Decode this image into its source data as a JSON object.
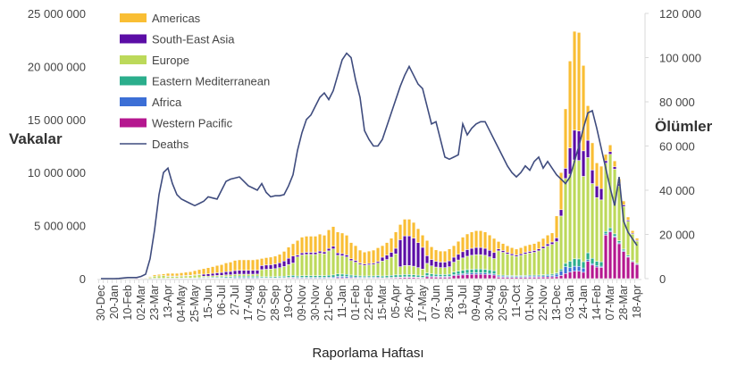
{
  "chart_data": {
    "type": "bar",
    "subtype": "stacked-bar-with-line",
    "xlabel": "Raporlama Haftası",
    "ylabel": "Vakalar",
    "y2label": "Ölümler",
    "ylim": [
      0,
      25000000
    ],
    "y2lim": [
      0,
      120000
    ],
    "cases_unit_multiplier": 1000000,
    "deaths_unit_multiplier": 1000,
    "yticks": [
      "0",
      "5 000 000",
      "10 000 000",
      "15 000 000",
      "20 000 000",
      "25 000 000"
    ],
    "y2ticks": [
      "0",
      "20 000",
      "40 000",
      "60 000",
      "80 000",
      "100 000",
      "120 000"
    ],
    "x_tick_every_weeks": 3,
    "x_tick_labels": [
      "30-Dec",
      "20-Jan",
      "10-Feb",
      "02-Mar",
      "23-Mar",
      "13-Apr",
      "04-May",
      "25-May",
      "15-Jun",
      "06-Jul",
      "27-Jul",
      "17-Aug",
      "07-Sep",
      "28-Sep",
      "19-Oct",
      "09-Nov",
      "30-Nov",
      "21-Dec",
      "11-Jan",
      "01-Feb",
      "22-Feb",
      "15-Mar",
      "05-Apr",
      "26-Apr",
      "17-May",
      "07-Jun",
      "28-Jun",
      "19-Jul",
      "09-Aug",
      "30-Aug",
      "20-Sep",
      "11-Oct",
      "01-Nov",
      "22-Nov",
      "13-Dec",
      "03-Jan",
      "24-Jan",
      "14-Feb",
      "07-Mar",
      "28-Mar",
      "18-Apr"
    ],
    "legend_position": "top-left",
    "legend": [
      "Americas",
      "South-East Asia",
      "Europe",
      "Eastern Mediterranean",
      "Africa",
      "Western Pacific",
      "Deaths"
    ],
    "stack_order": [
      "Western Pacific",
      "Africa",
      "Eastern Mediterranean",
      "Europe",
      "South-East Asia",
      "Americas"
    ],
    "series": [
      {
        "name": "Americas",
        "color": "#F9BE34",
        "values": [
          0,
          0,
          0,
          0,
          0,
          0,
          0,
          0,
          0,
          0,
          0.03,
          0.07,
          0.12,
          0.14,
          0.16,
          0.25,
          0.25,
          0.25,
          0.28,
          0.3,
          0.33,
          0.38,
          0.43,
          0.52,
          0.58,
          0.63,
          0.69,
          0.74,
          0.83,
          0.88,
          0.96,
          0.99,
          0.99,
          0.99,
          0.99,
          1.02,
          0.67,
          0.7,
          0.72,
          0.75,
          0.8,
          0.91,
          1.05,
          1.16,
          1.37,
          1.48,
          1.52,
          1.52,
          1.52,
          1.6,
          1.56,
          1.75,
          1.86,
          1.98,
          1.94,
          1.85,
          1.53,
          1.4,
          1.22,
          1.12,
          1.17,
          1.22,
          1.3,
          1.09,
          1.19,
          1.33,
          1.54,
          1.43,
          1.57,
          1.57,
          1.48,
          1.32,
          1.15,
          1.44,
          1.2,
          1.08,
          1.04,
          1.04,
          1.12,
          1.09,
          1.23,
          1.37,
          1.47,
          1.54,
          1.58,
          1.58,
          1.54,
          1.44,
          1.33,
          0.7,
          0.66,
          0.62,
          0.58,
          0.56,
          0.58,
          0.62,
          0.64,
          0.66,
          0.7,
          0.76,
          0.82,
          0.86,
          2.07,
          3.5,
          5.6,
          8.2,
          9.32,
          9.28,
          8.04,
          3.26,
          2.56,
          2.18,
          2.12,
          0.59,
          0.63,
          0.56,
          0.47,
          0.37,
          0.29,
          0.23,
          0.19
        ]
      },
      {
        "name": "South-East Asia",
        "color": "#5B0DA6",
        "values": [
          0,
          0,
          0,
          0,
          0,
          0,
          0,
          0,
          0,
          0,
          0,
          0,
          0,
          0,
          0,
          0.02,
          0.02,
          0.02,
          0.02,
          0.02,
          0.03,
          0.03,
          0.03,
          0.19,
          0.21,
          0.23,
          0.25,
          0.27,
          0.3,
          0.32,
          0.35,
          0.36,
          0.36,
          0.36,
          0.36,
          0.37,
          0.38,
          0.4,
          0.41,
          0.43,
          0.46,
          0.52,
          0.6,
          0.66,
          0.18,
          0.2,
          0.2,
          0.2,
          0.2,
          0.21,
          0.2,
          0.23,
          0.25,
          0.22,
          0.21,
          0.2,
          0.17,
          0.16,
          0.13,
          0.13,
          0.13,
          0.13,
          0.15,
          0.37,
          0.41,
          0.46,
          0.53,
          2.55,
          2.8,
          2.8,
          2.65,
          2.35,
          2.05,
          0.72,
          0.6,
          0.54,
          0.52,
          0.52,
          0.56,
          0.47,
          0.53,
          0.59,
          0.63,
          0.66,
          0.68,
          0.68,
          0.66,
          0.62,
          0.57,
          0.18,
          0.17,
          0.16,
          0.15,
          0.14,
          0.15,
          0.16,
          0.16,
          0.17,
          0.18,
          0.19,
          0.21,
          0.22,
          0.35,
          0.6,
          0.96,
          2.46,
          2.8,
          2.78,
          2.41,
          1.63,
          1.28,
          1.09,
          1.06,
          0.23,
          0.25,
          0.22,
          0.19,
          0.15,
          0.12,
          0.09,
          0.08
        ]
      },
      {
        "name": "Europe",
        "color": "#BCD95A",
        "values": [
          0,
          0,
          0,
          0,
          0,
          0,
          0,
          0,
          0,
          0,
          0.04,
          0.11,
          0.19,
          0.22,
          0.25,
          0.18,
          0.18,
          0.18,
          0.19,
          0.21,
          0.23,
          0.26,
          0.3,
          0.1,
          0.11,
          0.12,
          0.13,
          0.14,
          0.15,
          0.16,
          0.18,
          0.18,
          0.18,
          0.18,
          0.18,
          0.19,
          0.67,
          0.7,
          0.72,
          0.75,
          0.81,
          0.91,
          1.05,
          1.16,
          1.8,
          1.95,
          2.0,
          2.0,
          2.0,
          2.1,
          2.05,
          2.3,
          2.45,
          1.76,
          1.72,
          1.64,
          1.36,
          1.24,
          1.08,
          1.0,
          1.04,
          1.08,
          1.16,
          1.4,
          1.53,
          1.71,
          1.98,
          0.77,
          0.84,
          0.84,
          0.8,
          0.71,
          0.62,
          0.9,
          0.75,
          0.68,
          0.65,
          0.65,
          0.7,
          0.93,
          1.05,
          1.17,
          1.26,
          1.32,
          1.35,
          1.35,
          1.32,
          1.23,
          1.14,
          2.28,
          2.15,
          2.02,
          1.89,
          1.82,
          1.89,
          2.02,
          2.08,
          2.15,
          2.28,
          2.47,
          2.67,
          2.8,
          2.95,
          5.0,
          8.0,
          8.2,
          9.32,
          9.28,
          8.04,
          8.97,
          7.04,
          6.0,
          5.83,
          6.44,
          6.93,
          6.1,
          5.17,
          4.02,
          3.19,
          2.48,
          2.09
        ]
      },
      {
        "name": "Eastern Mediterranean",
        "color": "#2BAE8C",
        "values": [
          0,
          0,
          0,
          0,
          0,
          0,
          0,
          0,
          0,
          0,
          0.01,
          0.01,
          0.02,
          0.02,
          0.02,
          0.04,
          0.04,
          0.04,
          0.04,
          0.05,
          0.05,
          0.06,
          0.07,
          0.07,
          0.07,
          0.08,
          0.09,
          0.09,
          0.11,
          0.11,
          0.12,
          0.13,
          0.13,
          0.13,
          0.13,
          0.13,
          0.1,
          0.1,
          0.1,
          0.11,
          0.12,
          0.13,
          0.15,
          0.17,
          0.14,
          0.16,
          0.16,
          0.16,
          0.16,
          0.17,
          0.16,
          0.18,
          0.2,
          0.22,
          0.21,
          0.2,
          0.17,
          0.16,
          0.13,
          0.13,
          0.13,
          0.13,
          0.15,
          0.16,
          0.17,
          0.19,
          0.22,
          0.2,
          0.22,
          0.22,
          0.21,
          0.19,
          0.16,
          0.25,
          0.21,
          0.19,
          0.18,
          0.18,
          0.2,
          0.25,
          0.28,
          0.31,
          0.34,
          0.35,
          0.36,
          0.36,
          0.35,
          0.33,
          0.3,
          0.1,
          0.1,
          0.09,
          0.09,
          0.08,
          0.09,
          0.09,
          0.1,
          0.1,
          0.1,
          0.11,
          0.12,
          0.13,
          0.12,
          0.2,
          0.32,
          0.62,
          0.7,
          0.7,
          0.6,
          0.65,
          0.51,
          0.44,
          0.42,
          0.23,
          0.25,
          0.22,
          0.19,
          0.15,
          0.12,
          0.09,
          0.08
        ]
      },
      {
        "name": "Africa",
        "color": "#3C6FD6",
        "values": [
          0,
          0,
          0,
          0,
          0,
          0,
          0,
          0,
          0,
          0,
          0,
          0,
          0,
          0,
          0,
          0,
          0,
          0,
          0.01,
          0.01,
          0,
          0.01,
          0.01,
          0.04,
          0.04,
          0.05,
          0.05,
          0.05,
          0.06,
          0.06,
          0.07,
          0.07,
          0.07,
          0.07,
          0.07,
          0.07,
          0.04,
          0.04,
          0.04,
          0.04,
          0.05,
          0.05,
          0.06,
          0.07,
          0.07,
          0.08,
          0.08,
          0.08,
          0.08,
          0.08,
          0.08,
          0.09,
          0.1,
          0.13,
          0.13,
          0.12,
          0.1,
          0.09,
          0.08,
          0.07,
          0.08,
          0.08,
          0.09,
          0.03,
          0.03,
          0.04,
          0.04,
          0.05,
          0.06,
          0.06,
          0.05,
          0.05,
          0.04,
          0.11,
          0.09,
          0.08,
          0.08,
          0.08,
          0.08,
          0.09,
          0.11,
          0.12,
          0.13,
          0.13,
          0.14,
          0.14,
          0.13,
          0.12,
          0.11,
          0.1,
          0.1,
          0.09,
          0.09,
          0.08,
          0.09,
          0.09,
          0.1,
          0.1,
          0.1,
          0.11,
          0.12,
          0.13,
          0.24,
          0.4,
          0.64,
          0.41,
          0.47,
          0.46,
          0.4,
          0.16,
          0.13,
          0.11,
          0.11,
          0.12,
          0.13,
          0.11,
          0.09,
          0.07,
          0.06,
          0.05,
          0.04
        ]
      },
      {
        "name": "Western Pacific",
        "color": "#B5178F",
        "values": [
          0,
          0,
          0,
          0,
          0,
          0,
          0,
          0,
          0.01,
          0.03,
          0,
          0.01,
          0.02,
          0.02,
          0.02,
          0.01,
          0.01,
          0.01,
          0.01,
          0.01,
          0.01,
          0.01,
          0.01,
          0.02,
          0.02,
          0.02,
          0.03,
          0.03,
          0.03,
          0.03,
          0.04,
          0.04,
          0.04,
          0.04,
          0.04,
          0.04,
          0.04,
          0.04,
          0.04,
          0.04,
          0.05,
          0.05,
          0.06,
          0.07,
          0.04,
          0.04,
          0.04,
          0.04,
          0.04,
          0.04,
          0.04,
          0.05,
          0.05,
          0.09,
          0.09,
          0.08,
          0.07,
          0.06,
          0.05,
          0.05,
          0.05,
          0.05,
          0.06,
          0.06,
          0.07,
          0.08,
          0.09,
          0.1,
          0.11,
          0.11,
          0.11,
          0.09,
          0.08,
          0.18,
          0.15,
          0.14,
          0.13,
          0.13,
          0.14,
          0.28,
          0.32,
          0.35,
          0.38,
          0.4,
          0.41,
          0.41,
          0.4,
          0.37,
          0.34,
          0.14,
          0.13,
          0.12,
          0.12,
          0.11,
          0.12,
          0.12,
          0.13,
          0.13,
          0.14,
          0.15,
          0.16,
          0.17,
          0.18,
          0.3,
          0.48,
          0.62,
          0.7,
          0.7,
          0.6,
          1.63,
          1.28,
          1.09,
          1.06,
          4.1,
          4.41,
          3.89,
          3.29,
          2.56,
          2.03,
          1.58,
          1.33
        ]
      }
    ],
    "line_series": {
      "name": "Deaths",
      "color": "#3F4C7E",
      "axis": "right",
      "values": [
        0,
        0,
        0,
        0,
        0.1,
        0.3,
        0.5,
        0.5,
        0.5,
        1,
        2,
        9,
        22,
        38,
        48,
        50,
        43,
        38,
        36,
        35,
        34,
        33,
        34,
        35,
        37,
        36.5,
        36,
        40,
        44,
        45,
        45.5,
        46,
        44,
        42,
        41,
        40,
        43,
        39,
        37,
        37.5,
        37.5,
        38,
        42,
        47,
        58,
        66,
        72,
        74,
        78,
        82,
        84,
        81,
        85,
        92,
        99,
        102,
        100,
        90,
        82,
        67,
        63,
        60,
        60,
        63,
        69,
        75,
        81,
        87,
        92,
        96,
        92,
        88,
        86,
        78,
        70,
        71,
        63,
        55,
        54,
        55,
        56,
        70,
        65,
        68,
        70,
        71,
        71,
        67,
        63,
        59,
        55,
        51,
        48,
        46,
        48,
        51,
        49,
        53,
        55,
        50,
        53,
        50,
        47,
        45,
        43,
        46,
        53,
        60,
        68,
        75,
        76,
        68,
        59,
        50,
        41,
        33,
        46,
        26,
        21,
        18,
        15
      ]
    }
  }
}
